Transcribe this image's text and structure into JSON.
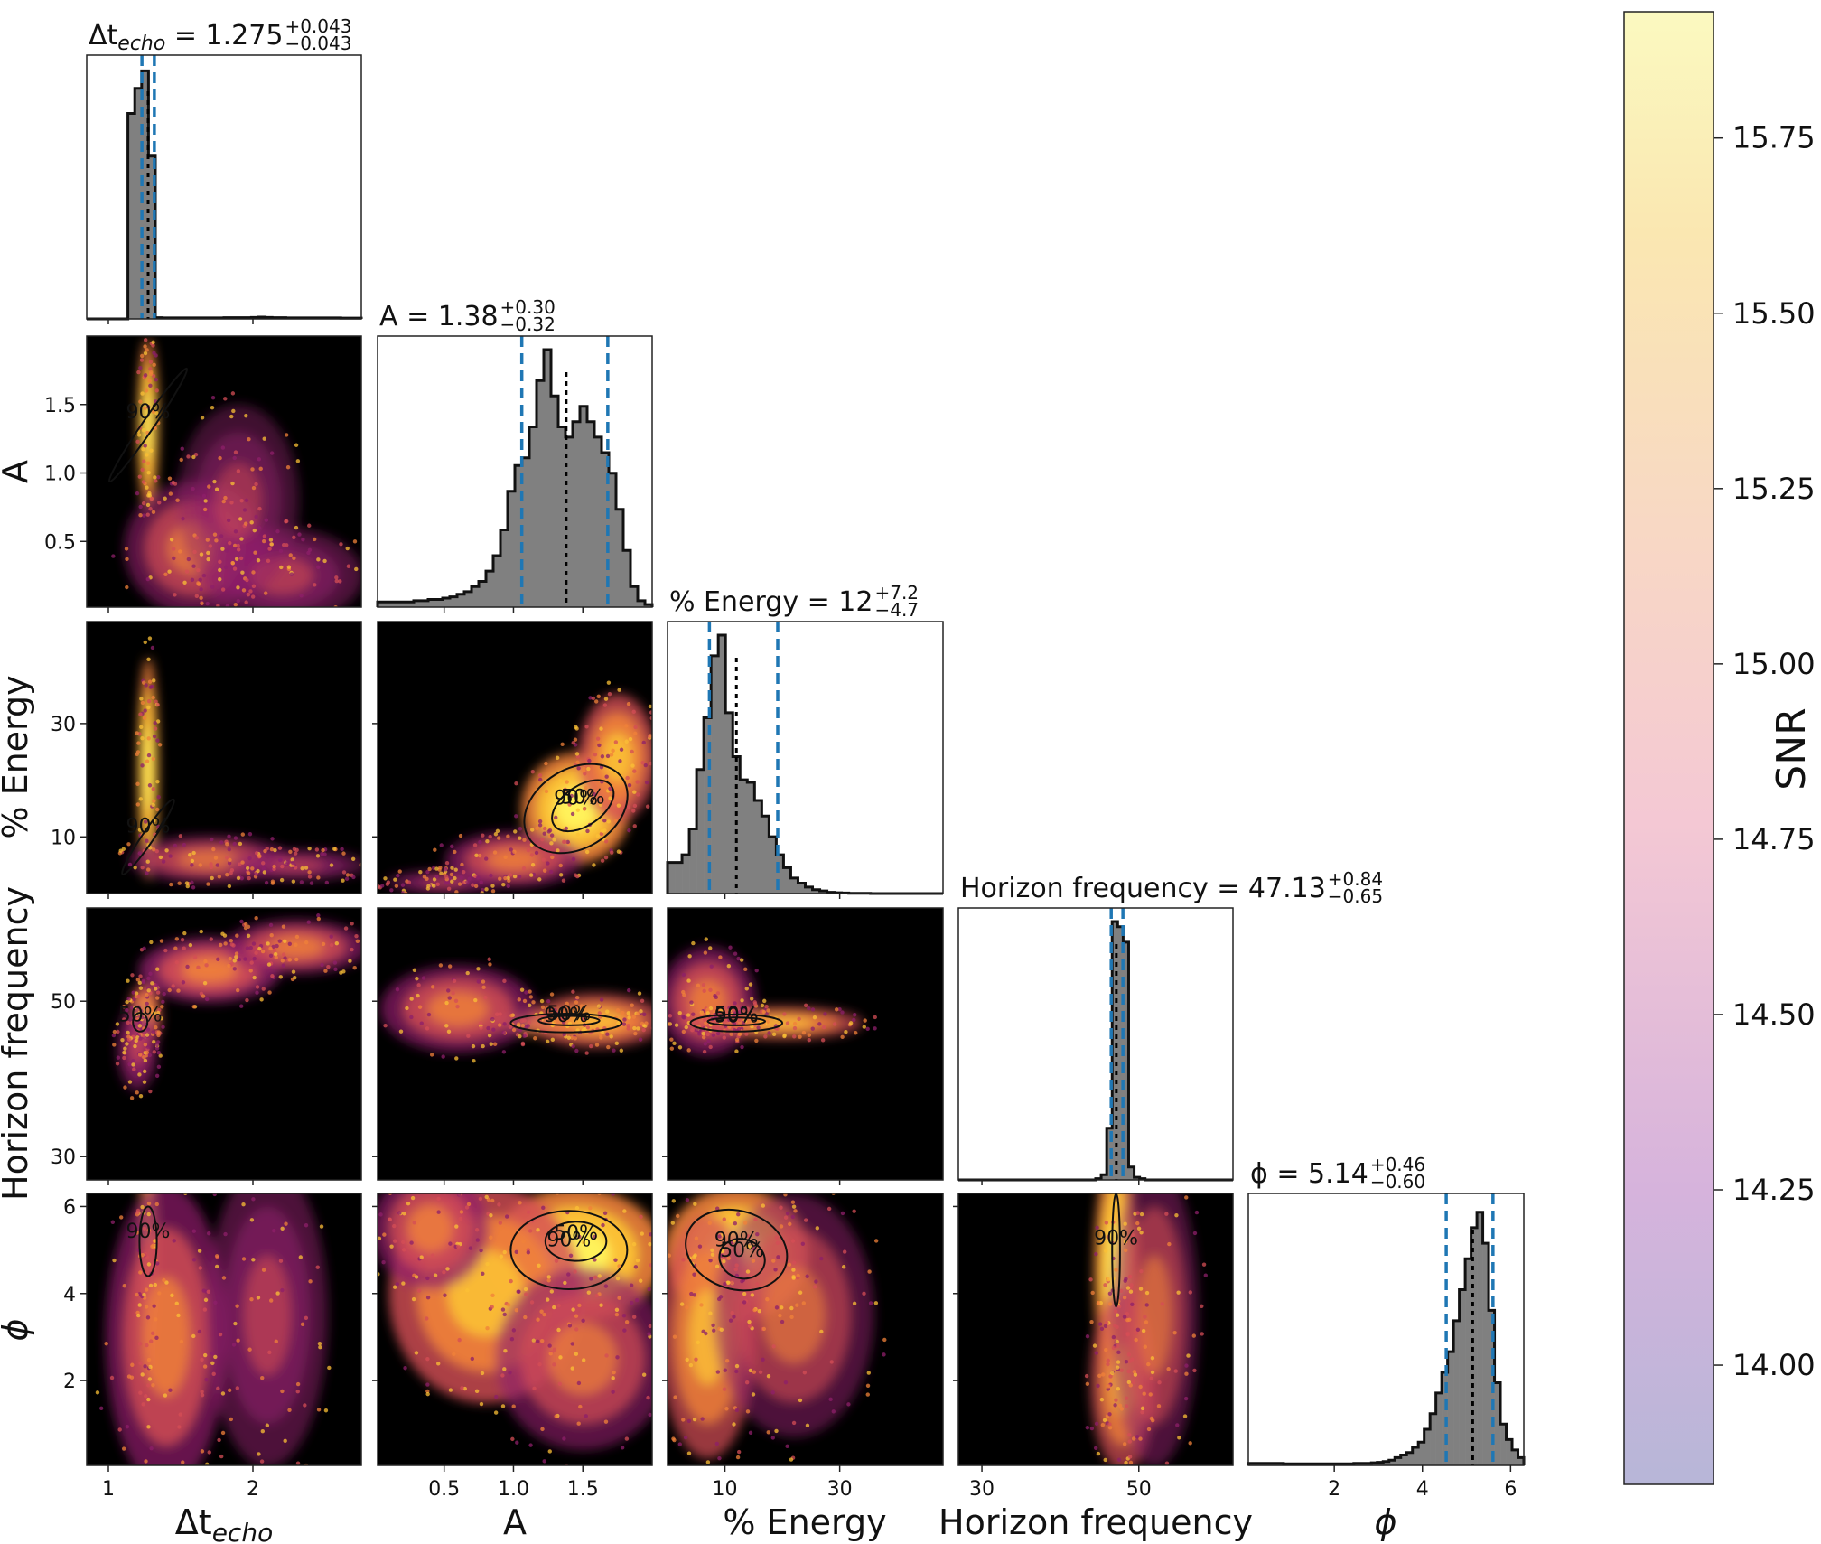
{
  "chart_data": [
    {
      "type": "corner",
      "parameters": [
        {
          "key": "dt",
          "axis_label": "Δt",
          "axis_label_sub": "echo",
          "range": [
            0.85,
            2.75
          ],
          "ticks": [
            1,
            2
          ],
          "tick_labels": [
            "1",
            "2"
          ],
          "title": {
            "prefix": "Δt",
            "sub": "echo",
            "value": "= 1.275",
            "upper": "+0.043",
            "lower": "−0.043"
          },
          "median": 1.275,
          "q_low": 1.232,
          "q_high": 1.318
        },
        {
          "key": "A",
          "axis_label": "A",
          "range": [
            0.02,
            2.0
          ],
          "ticks": [
            0.5,
            1.0,
            1.5
          ],
          "tick_labels": [
            "0.5",
            "1.0",
            "1.5"
          ],
          "title": {
            "prefix": "A",
            "value": "= 1.38",
            "upper": "+0.30",
            "lower": "−0.32"
          },
          "median": 1.38,
          "q_low": 1.06,
          "q_high": 1.68
        },
        {
          "key": "E",
          "axis_label": "% Energy",
          "range": [
            0,
            48
          ],
          "ticks": [
            10,
            30
          ],
          "tick_labels": [
            "10",
            "30"
          ],
          "title": {
            "prefix": "% Energy",
            "value": "= 12",
            "upper": "+7.2",
            "lower": "−4.7"
          },
          "median": 12,
          "q_low": 7.3,
          "q_high": 19.2
        },
        {
          "key": "hf",
          "axis_label": "Horizon frequency",
          "range": [
            27,
            62
          ],
          "ticks": [
            30,
            50
          ],
          "tick_labels": [
            "30",
            "50"
          ],
          "title": {
            "prefix": "Horizon frequency",
            "value": "= 47.13",
            "upper": "+0.84",
            "lower": "−0.65"
          },
          "median": 47.13,
          "q_low": 46.48,
          "q_high": 47.97
        },
        {
          "key": "phi",
          "axis_label": "ϕ",
          "range": [
            0.05,
            6.3
          ],
          "ticks": [
            2,
            4,
            6
          ],
          "tick_labels": [
            "2",
            "4",
            "6"
          ],
          "title": {
            "prefix": "ϕ",
            "value": "= 5.14",
            "upper": "+0.46",
            "lower": "−0.60"
          },
          "median": 5.14,
          "q_low": 4.54,
          "q_high": 5.6
        }
      ],
      "histograms": {
        "dt": [
          0,
          0,
          0,
          0,
          0,
          0,
          0.82,
          0.92,
          0.99,
          0.65,
          0.005,
          0.004,
          0.004,
          0.004,
          0.004,
          0.004,
          0.004,
          0.004,
          0.004,
          0.004,
          0.005,
          0.005,
          0.005,
          0.005,
          0.006,
          0.007,
          0.006,
          0.005,
          0.005,
          0.004,
          0.004,
          0.004,
          0.004,
          0.004,
          0.004,
          0.004,
          0.004,
          0.003,
          0.003,
          0.003
        ],
        "A": [
          0.02,
          0.02,
          0.02,
          0.02,
          0.02,
          0.025,
          0.025,
          0.03,
          0.03,
          0.035,
          0.04,
          0.05,
          0.06,
          0.08,
          0.1,
          0.14,
          0.2,
          0.3,
          0.45,
          0.55,
          0.58,
          0.7,
          0.88,
          1.0,
          0.82,
          0.7,
          0.66,
          0.72,
          0.78,
          0.72,
          0.66,
          0.6,
          0.52,
          0.38,
          0.22,
          0.08,
          0.025,
          0.01
        ],
        "E": [
          0.12,
          0.12,
          0.15,
          0.25,
          0.48,
          0.68,
          0.92,
          1.0,
          0.7,
          0.53,
          0.44,
          0.43,
          0.36,
          0.3,
          0.22,
          0.15,
          0.1,
          0.06,
          0.04,
          0.025,
          0.015,
          0.01,
          0.005,
          0.003,
          0.002,
          0.001,
          0.001,
          0.001,
          0,
          0,
          0,
          0,
          0,
          0,
          0,
          0,
          0,
          0
        ],
        "hf": [
          0,
          0,
          0,
          0,
          0,
          0,
          0,
          0,
          0,
          0,
          0,
          0,
          0,
          0,
          0,
          0,
          0,
          0,
          0,
          0,
          0,
          0,
          0,
          0,
          0,
          0.005,
          0.02,
          0.2,
          1.0,
          0.98,
          0.92,
          0.05,
          0.01,
          0.005,
          0,
          0,
          0,
          0,
          0,
          0,
          0,
          0,
          0,
          0,
          0,
          0,
          0,
          0,
          0,
          0
        ],
        "phi": [
          0.008,
          0.008,
          0.008,
          0.008,
          0.008,
          0.008,
          0.006,
          0.006,
          0.006,
          0.006,
          0.006,
          0.006,
          0.006,
          0.006,
          0.006,
          0.006,
          0.006,
          0.006,
          0.008,
          0.008,
          0.008,
          0.01,
          0.012,
          0.015,
          0.02,
          0.03,
          0.04,
          0.05,
          0.07,
          0.09,
          0.14,
          0.2,
          0.28,
          0.36,
          0.44,
          0.56,
          0.68,
          0.8,
          0.92,
          0.98,
          0.86,
          0.6,
          0.32,
          0.16,
          0.1,
          0.06,
          0.03
        ]
      },
      "contour_labels": [
        "50%",
        "90%"
      ],
      "grid": false
    },
    {
      "type": "heatmap",
      "colorbar_label": "SNR",
      "ticks": [
        14.0,
        14.25,
        14.5,
        14.75,
        15.0,
        15.25,
        15.5,
        15.75
      ],
      "tick_labels": [
        "14.00",
        "14.25",
        "14.50",
        "14.75",
        "15.00",
        "15.25",
        "15.50",
        "15.75"
      ],
      "range": [
        13.83,
        15.93
      ],
      "colormap": [
        "#b7b6d8",
        "#d6b3dc",
        "#f4c8d4",
        "#f8d8c4",
        "#fae7b1",
        "#fbf9c0"
      ]
    }
  ],
  "palette": {
    "panel_bg": "#000000",
    "hist_fill": "#808080",
    "hist_edge": "#111111",
    "quantile_line": "#1f77b4",
    "heat_stops": [
      "#3a0a4f",
      "#8e1f6a",
      "#d44e55",
      "#f0823a",
      "#fbc036",
      "#fff25a"
    ]
  }
}
